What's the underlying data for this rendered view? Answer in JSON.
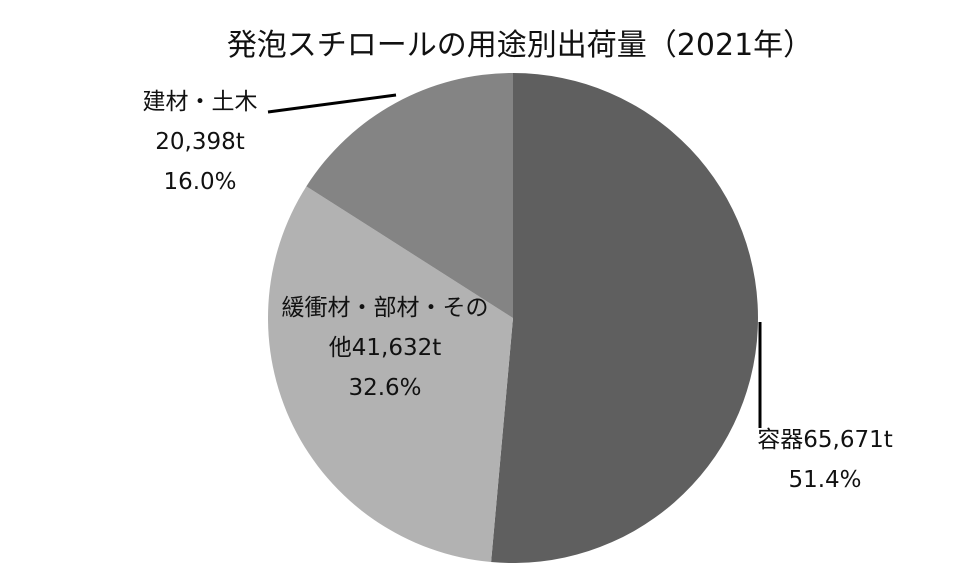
{
  "chart_data": {
    "type": "pie",
    "title": "発泡スチロールの用途別出荷量（2021年）",
    "categories": [
      "容器",
      "緩衝材・部材・その他",
      "建材・土木"
    ],
    "values": [
      65671,
      41632,
      20398
    ],
    "value_labels": [
      "65,671t",
      "41,632t",
      "20,398t"
    ],
    "percents": [
      51.4,
      32.6,
      16.0
    ],
    "percent_labels": [
      "51.4%",
      "32.6%",
      "16.0%"
    ],
    "colors": [
      "#5f5f5f",
      "#b2b2b2",
      "#848484"
    ]
  }
}
